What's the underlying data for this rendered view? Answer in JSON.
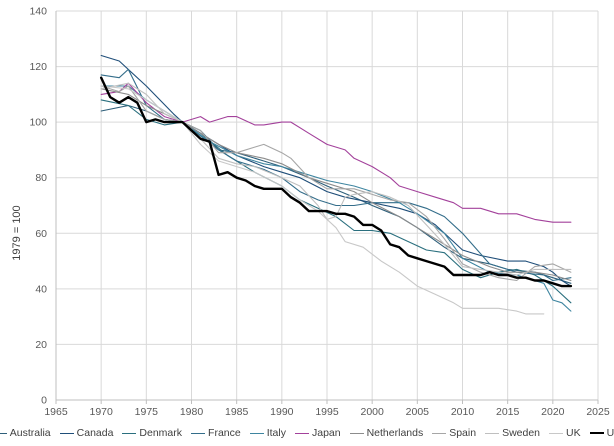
{
  "chart_data": {
    "type": "line",
    "title": "",
    "xlabel": "",
    "ylabel": "1979 = 100",
    "xlim": [
      1965,
      2025
    ],
    "ylim": [
      0,
      140
    ],
    "x_ticks": [
      1965,
      1970,
      1975,
      1980,
      1985,
      1990,
      1995,
      2000,
      2005,
      2010,
      2015,
      2020,
      2025
    ],
    "y_ticks": [
      0,
      20,
      40,
      60,
      80,
      100,
      120,
      140
    ],
    "grid": "vertical and horizontal",
    "legend_position": "bottom",
    "series": [
      {
        "name": "Australia",
        "color": "#2e5f7a",
        "width": 1.1,
        "x": [
          1970,
          1973,
          1975,
          1977,
          1979,
          1981,
          1983,
          1985,
          1988,
          1990,
          1993,
          1995,
          1998,
          2000,
          2003,
          2005,
          2008,
          2010,
          2013,
          2015,
          2018,
          2020,
          2022
        ],
        "y": [
          104,
          106,
          104,
          101,
          100,
          97,
          90,
          89,
          86,
          84,
          80,
          77,
          73,
          70,
          66,
          62,
          55,
          51,
          49,
          47,
          46,
          44,
          42
        ]
      },
      {
        "name": "Canada",
        "color": "#1f4e79",
        "width": 1.1,
        "x": [
          1970,
          1972,
          1975,
          1978,
          1979,
          1982,
          1985,
          1988,
          1990,
          1992,
          1995,
          1997,
          2000,
          2003,
          2005,
          2007,
          2010,
          2012,
          2015,
          2017,
          2019,
          2020,
          2021,
          2022
        ],
        "y": [
          124,
          122,
          113,
          103,
          100,
          94,
          88,
          84,
          82,
          80,
          75,
          73,
          71,
          69,
          67,
          63,
          54,
          52,
          50,
          50,
          48,
          46,
          43,
          41
        ]
      },
      {
        "name": "Denmark",
        "color": "#2a6f7e",
        "width": 1.1,
        "x": [
          1970,
          1973,
          1975,
          1977,
          1979,
          1981,
          1984,
          1987,
          1990,
          1992,
          1994,
          1996,
          1998,
          2000,
          2002,
          2004,
          2006,
          2008,
          2010,
          2012,
          2014,
          2016,
          2018,
          2020,
          2022
        ],
        "y": [
          108,
          106,
          101,
          99,
          100,
          96,
          88,
          82,
          77,
          72,
          69,
          66,
          61,
          61,
          60,
          57,
          54,
          53,
          47,
          44,
          46,
          47,
          45,
          41,
          35
        ]
      },
      {
        "name": "France",
        "color": "#336d8a",
        "width": 1.1,
        "x": [
          1970,
          1972,
          1973,
          1975,
          1977,
          1979,
          1981,
          1983,
          1985,
          1988,
          1990,
          1992,
          1994,
          1996,
          1998,
          2000,
          2002,
          2004,
          2006,
          2008,
          2010,
          2013,
          2016,
          2019,
          2020,
          2022
        ],
        "y": [
          117,
          116,
          119,
          106,
          101,
          100,
          95,
          90,
          86,
          83,
          80,
          75,
          72,
          70,
          70,
          71,
          71,
          71,
          69,
          66,
          60,
          49,
          46,
          45,
          43,
          44
        ]
      },
      {
        "name": "Italy",
        "color": "#3e85a0",
        "width": 1.1,
        "x": [
          1970,
          1973,
          1975,
          1977,
          1979,
          1982,
          1985,
          1988,
          1990,
          1992,
          1995,
          1998,
          2000,
          2003,
          2005,
          2008,
          2010,
          2013,
          2016,
          2019,
          2020,
          2021,
          2022
        ],
        "y": [
          113,
          113,
          108,
          104,
          100,
          93,
          88,
          85,
          84,
          82,
          79,
          77,
          75,
          71,
          67,
          60,
          51,
          46,
          45,
          42,
          36,
          35,
          32
        ]
      },
      {
        "name": "Japan",
        "color": "#a3419b",
        "width": 1.1,
        "x": [
          1970,
          1972,
          1973,
          1975,
          1977,
          1979,
          1981,
          1982,
          1984,
          1985,
          1987,
          1988,
          1990,
          1991,
          1993,
          1995,
          1997,
          1998,
          2000,
          2002,
          2003,
          2005,
          2007,
          2009,
          2010,
          2012,
          2014,
          2016,
          2018,
          2020,
          2022
        ],
        "y": [
          110,
          111,
          114,
          107,
          102,
          100,
          102,
          100,
          102,
          102,
          99,
          99,
          100,
          100,
          96,
          92,
          90,
          87,
          84,
          80,
          77,
          75,
          73,
          71,
          69,
          69,
          67,
          67,
          65,
          64,
          64
        ]
      },
      {
        "name": "Netherlands",
        "color": "#8c8c8c",
        "width": 1.1,
        "x": [
          1970,
          1973,
          1975,
          1977,
          1979,
          1981,
          1983,
          1985,
          1988,
          1990,
          1993,
          1995,
          1998,
          2000,
          2003,
          2005,
          2008,
          2010,
          2013,
          2015,
          2018,
          2020,
          2022
        ],
        "y": [
          112,
          110,
          106,
          103,
          100,
          96,
          92,
          89,
          87,
          85,
          80,
          78,
          75,
          71,
          66,
          62,
          56,
          52,
          48,
          46,
          46,
          45,
          43
        ]
      },
      {
        "name": "Spain",
        "color": "#a6a6a6",
        "width": 1.1,
        "x": [
          1970,
          1972,
          1973,
          1975,
          1977,
          1979,
          1981,
          1983,
          1985,
          1987,
          1988,
          1990,
          1991,
          1993,
          1995,
          1998,
          2000,
          2002,
          2004,
          2006,
          2008,
          2010,
          2012,
          2014,
          2016,
          2018,
          2020,
          2022
        ],
        "y": [
          113,
          111,
          113,
          104,
          101,
          100,
          97,
          89,
          89,
          91,
          92,
          89,
          87,
          80,
          76,
          76,
          74,
          72,
          71,
          66,
          58,
          49,
          46,
          44,
          43,
          48,
          49,
          46
        ]
      },
      {
        "name": "Sweden",
        "color": "#bfbfbf",
        "width": 1.1,
        "x": [
          1970,
          1973,
          1975,
          1977,
          1979,
          1981,
          1983,
          1985,
          1987,
          1990,
          1992,
          1994,
          1995,
          1996,
          1997,
          1998,
          2000,
          2002,
          2004,
          2006,
          2008,
          2010,
          2012,
          2014,
          2016,
          2018,
          2020,
          2022
        ],
        "y": [
          112,
          114,
          110,
          103,
          100,
          94,
          87,
          85,
          84,
          80,
          77,
          70,
          65,
          66,
          73,
          74,
          75,
          73,
          70,
          63,
          56,
          48,
          47,
          46,
          45,
          47,
          47,
          47
        ]
      },
      {
        "name": "UK",
        "color": "#c8c8c8",
        "width": 1.1,
        "x": [
          1970,
          1973,
          1975,
          1977,
          1979,
          1981,
          1983,
          1985,
          1987,
          1990,
          1992,
          1994,
          1996,
          1997,
          1999,
          2001,
          2003,
          2005,
          2007,
          2009,
          2010,
          2012,
          2014,
          2016,
          2017,
          2019
        ],
        "y": [
          113,
          112,
          108,
          104,
          100,
          92,
          86,
          84,
          82,
          77,
          72,
          68,
          62,
          57,
          55,
          50,
          46,
          41,
          38,
          35,
          33,
          33,
          33,
          32,
          31,
          31
        ]
      },
      {
        "name": "US",
        "color": "#000000",
        "width": 2.4,
        "x": [
          1970,
          1971,
          1972,
          1973,
          1974,
          1975,
          1976,
          1977,
          1978,
          1979,
          1980,
          1981,
          1982,
          1983,
          1984,
          1985,
          1986,
          1987,
          1988,
          1989,
          1990,
          1991,
          1992,
          1993,
          1994,
          1995,
          1996,
          1997,
          1998,
          1999,
          2000,
          2001,
          2002,
          2003,
          2004,
          2005,
          2006,
          2007,
          2008,
          2009,
          2010,
          2011,
          2012,
          2013,
          2014,
          2015,
          2016,
          2017,
          2018,
          2019,
          2020,
          2021,
          2022
        ],
        "y": [
          116,
          109,
          107,
          109,
          107,
          100,
          101,
          100,
          100,
          100,
          97,
          94,
          93,
          81,
          82,
          80,
          79,
          77,
          76,
          76,
          76,
          73,
          71,
          68,
          68,
          68,
          67,
          67,
          66,
          63,
          63,
          61,
          56,
          55,
          52,
          51,
          50,
          49,
          48,
          45,
          45,
          45,
          45,
          46,
          45,
          45,
          44,
          44,
          43,
          43,
          42,
          41,
          41
        ]
      }
    ]
  }
}
